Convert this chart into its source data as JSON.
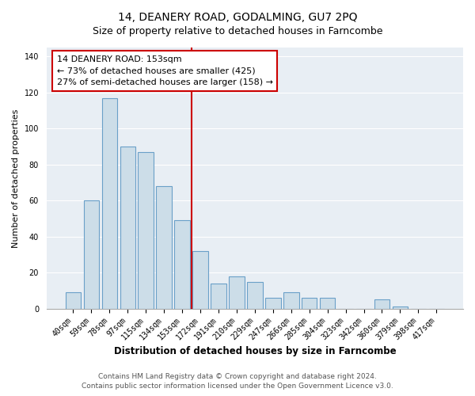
{
  "title": "14, DEANERY ROAD, GODALMING, GU7 2PQ",
  "subtitle": "Size of property relative to detached houses in Farncombe",
  "xlabel": "Distribution of detached houses by size in Farncombe",
  "ylabel": "Number of detached properties",
  "bar_labels": [
    "40sqm",
    "59sqm",
    "78sqm",
    "97sqm",
    "115sqm",
    "134sqm",
    "153sqm",
    "172sqm",
    "191sqm",
    "210sqm",
    "229sqm",
    "247sqm",
    "266sqm",
    "285sqm",
    "304sqm",
    "323sqm",
    "342sqm",
    "360sqm",
    "379sqm",
    "398sqm",
    "417sqm"
  ],
  "bar_values": [
    9,
    60,
    117,
    90,
    87,
    68,
    49,
    32,
    14,
    18,
    15,
    6,
    9,
    6,
    6,
    0,
    0,
    5,
    1,
    0,
    0
  ],
  "bar_color": "#ccdde8",
  "bar_edgecolor": "#6aa0c8",
  "highlight_index": 6,
  "highlight_line_color": "#cc0000",
  "ylim": [
    0,
    145
  ],
  "yticks": [
    0,
    20,
    40,
    60,
    80,
    100,
    120,
    140
  ],
  "annotation_title": "14 DEANERY ROAD: 153sqm",
  "annotation_line1": "← 73% of detached houses are smaller (425)",
  "annotation_line2": "27% of semi-detached houses are larger (158) →",
  "annotation_box_edgecolor": "#cc0000",
  "footer_line1": "Contains HM Land Registry data © Crown copyright and database right 2024.",
  "footer_line2": "Contains public sector information licensed under the Open Government Licence v3.0.",
  "background_color": "#e8eef4",
  "grid_color": "#ffffff",
  "title_fontsize": 10,
  "subtitle_fontsize": 9,
  "xlabel_fontsize": 8.5,
  "ylabel_fontsize": 8,
  "tick_fontsize": 7,
  "footer_fontsize": 6.5
}
